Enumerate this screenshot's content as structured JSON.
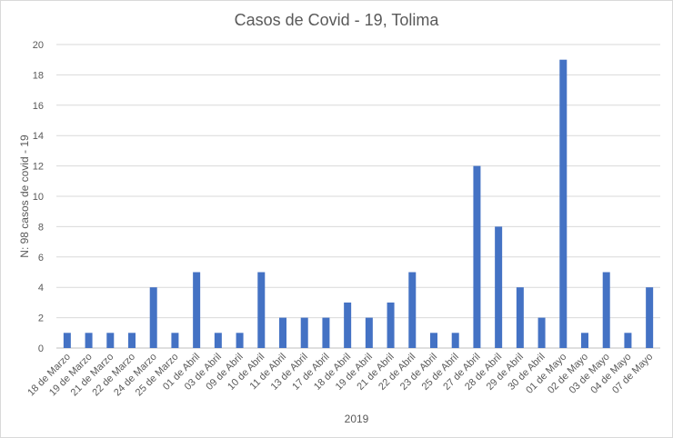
{
  "chart_data": {
    "type": "bar",
    "title": "Casos de Covid - 19, Tolima",
    "xlabel": "2019",
    "ylabel": "N: 98 casos de covid - 19",
    "ylim": [
      0,
      20
    ],
    "yticks": [
      0,
      2,
      4,
      6,
      8,
      10,
      12,
      14,
      16,
      18,
      20
    ],
    "grid": true,
    "legend": "none",
    "bar_color": "#4472C4",
    "categories": [
      "18 de Marzo",
      "19 de Marzo",
      "21 de Marzo",
      "22 de Marzo",
      "24 de Marzo",
      "25 de Marzo",
      "01 de Abril",
      "03 de Abril",
      "09 de Abril",
      "10 de Abril",
      "11 de Abril",
      "13 de Abril",
      "17 de Abril",
      "18 de Abril",
      "19 de Abril",
      "21 de Abril",
      "22 de Abril",
      "23 de Abril",
      "25 de Abril",
      "27 de Abril",
      "28 de Abril",
      "29 de Abril",
      "30 de Abril",
      "01 de Mayo",
      "02 de Mayo",
      "03 de Mayo",
      "04 de Mayo",
      "07 de Mayo"
    ],
    "values": [
      1,
      1,
      1,
      1,
      4,
      1,
      5,
      1,
      1,
      5,
      2,
      2,
      2,
      3,
      2,
      3,
      5,
      1,
      1,
      12,
      8,
      4,
      2,
      19,
      1,
      5,
      1,
      4
    ]
  }
}
